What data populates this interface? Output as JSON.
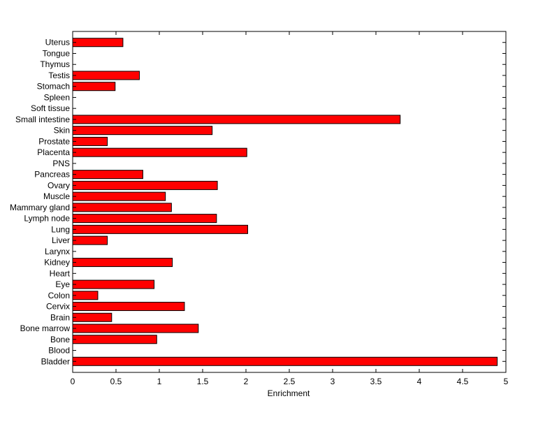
{
  "chart_data": {
    "type": "bar",
    "orientation": "horizontal",
    "title": "",
    "xlabel": "Enrichment",
    "ylabel": "",
    "xlim": [
      0,
      5
    ],
    "xticks": [
      "0",
      "0.5",
      "1",
      "1.5",
      "2",
      "2.5",
      "3",
      "3.5",
      "4",
      "4.5",
      "5"
    ],
    "grid": false,
    "bar_color": "#ff0000",
    "categories": [
      "Bladder",
      "Blood",
      "Bone",
      "Bone marrow",
      "Brain",
      "Cervix",
      "Colon",
      "Eye",
      "Heart",
      "Kidney",
      "Larynx",
      "Liver",
      "Lung",
      "Lymph node",
      "Mammary gland",
      "Muscle",
      "Ovary",
      "Pancreas",
      "PNS",
      "Placenta",
      "Prostate",
      "Skin",
      "Small intestine",
      "Soft tissue",
      "Spleen",
      "Stomach",
      "Testis",
      "Thymus",
      "Tongue",
      "Uterus"
    ],
    "values": [
      4.9,
      0,
      0.97,
      1.45,
      0.45,
      1.29,
      0.29,
      0.94,
      0,
      1.15,
      0,
      0.4,
      2.02,
      1.66,
      1.14,
      1.07,
      1.67,
      0.81,
      0,
      2.01,
      0.4,
      1.61,
      3.78,
      0,
      0,
      0.49,
      0.77,
      0,
      0,
      0.58
    ]
  }
}
